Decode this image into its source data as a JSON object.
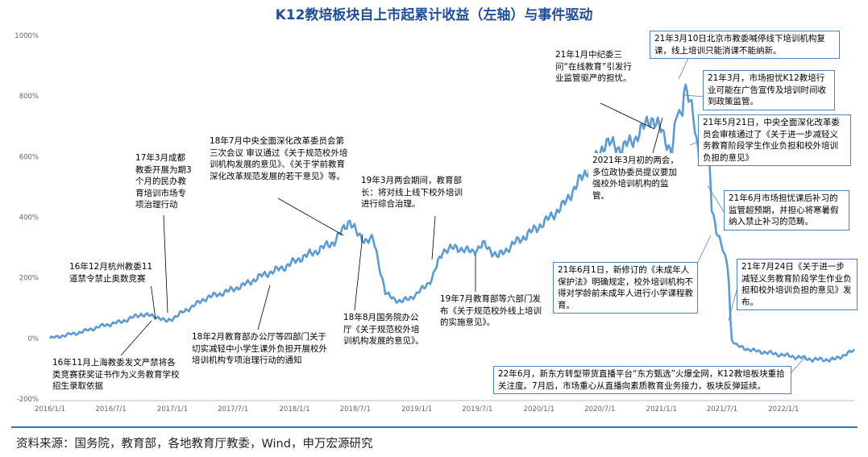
{
  "title": "K12教培板块自上市起累计收益（左轴）与事件驱动",
  "source": "资料来源：国务院，教育部，各地教育厅教委，Wind，申万宏源研究",
  "colors": {
    "line": "#5b9bd5",
    "title": "#1f4e9a",
    "rule": "#2f75b5",
    "box_dark": "#000000",
    "box_blue": "#4f81bd"
  },
  "chart_data": {
    "type": "line",
    "y_unit": "%",
    "ylim": [
      -200,
      1000
    ],
    "y_ticks": [
      -200,
      0,
      200,
      400,
      600,
      800,
      1000
    ],
    "y_tick_labels": [
      "-200%",
      "0%",
      "200%",
      "400%",
      "600%",
      "800%",
      "1000%"
    ],
    "x_range": [
      "2016-01-01",
      "2022-07-31"
    ],
    "x_tick_labels": [
      "2016/1/1",
      "2016/7/1",
      "2017/1/1",
      "2017/7/1",
      "2018/1/1",
      "2018/7/1",
      "2019/1/1",
      "2019/7/1",
      "2020/1/1",
      "2020/7/1",
      "2021/1/1",
      "2021/7/1",
      "2022/1/1"
    ],
    "grid": false,
    "series": [
      {
        "x": [
          "2016-01-01",
          "2016-02-15",
          "2016-04-01",
          "2016-06-01",
          "2016-08-01",
          "2016-10-01",
          "2016-11-20",
          "2016-12-15",
          "2017-01-15",
          "2017-03-01",
          "2017-04-15",
          "2017-06-01",
          "2017-08-01",
          "2017-10-01",
          "2017-12-01",
          "2018-01-20",
          "2018-03-01",
          "2018-05-01",
          "2018-06-15",
          "2018-07-10",
          "2018-08-01",
          "2018-08-25",
          "2018-10-01",
          "2018-11-15",
          "2019-01-01",
          "2019-02-15",
          "2019-03-20",
          "2019-05-01",
          "2019-06-15",
          "2019-07-20",
          "2019-09-01",
          "2019-10-15",
          "2019-12-01",
          "2020-01-20",
          "2020-03-15",
          "2020-05-01",
          "2020-06-15",
          "2020-07-20",
          "2020-09-01",
          "2020-10-15",
          "2020-12-01",
          "2021-01-05",
          "2021-02-01",
          "2021-02-20",
          "2021-03-03",
          "2021-03-10",
          "2021-04-01",
          "2021-04-25",
          "2021-05-21",
          "2021-06-01",
          "2021-06-15",
          "2021-07-01",
          "2021-07-20",
          "2021-07-24",
          "2021-07-28",
          "2021-08-15",
          "2021-10-01",
          "2021-12-01",
          "2022-02-01",
          "2022-04-01",
          "2022-06-01",
          "2022-07-31"
        ],
        "values": [
          0,
          10,
          20,
          40,
          55,
          80,
          70,
          55,
          75,
          105,
          135,
          150,
          175,
          210,
          235,
          265,
          285,
          320,
          390,
          340,
          325,
          325,
          145,
          120,
          145,
          195,
          290,
          300,
          285,
          310,
          270,
          310,
          345,
          385,
          440,
          520,
          585,
          650,
          625,
          660,
          730,
          680,
          610,
          760,
          725,
          845,
          760,
          600,
          650,
          430,
          360,
          300,
          230,
          150,
          0,
          -25,
          -40,
          -50,
          -60,
          -70,
          -70,
          -40
        ]
      }
    ]
  },
  "annotations": [
    {
      "text": "16年11月上海教委发文严禁将各类竞赛获奖证书作为义务教育学校招生录取依据",
      "style": "dark"
    },
    {
      "text": "16年12月杭州教委11道禁令禁止奥数竞赛",
      "style": "dark"
    },
    {
      "text": "17年3月成都教委开展为期3个月的民办教育培训市场专项治理行动",
      "style": "dark"
    },
    {
      "text": "18年2月教育部办公厅等四部门关于切实减轻中小学生课外负担开展校外培训机构专项治理行动的通知",
      "style": "dark"
    },
    {
      "text": "18年7月中央全面深化改革委员会第三次会议 审议通过《关于规范校外培训机构发展的意见》、《关于学前教育深化改革规范发展的若干意见》等。",
      "style": "dark"
    },
    {
      "text": "18年8月国务院办公厅《关于规范校外培训机构发展的意见》。",
      "style": "dark"
    },
    {
      "text": "19年3月两会期间，教育部长：将对线上线下校外培训进行综合治理。",
      "style": "dark"
    },
    {
      "text": "19年7月教育部等六部门发布《关于规范校外线上培训的实施意见》。",
      "style": "dark"
    },
    {
      "text": "21年1月中纪委三问“在线教育”引发行业监管驱严的担忧。",
      "style": "dark"
    },
    {
      "text": "2021年3月初的两会，多位政协委员提议要加强校外培训机构的监管。",
      "style": "dark"
    },
    {
      "text": "21年3月10日北京市教委喊停线下培训机构复课，线上培训只能消课不能纳新。",
      "style": "blue"
    },
    {
      "text": "21年3月，市场担忧K12教培行业可能在广告宣传及培训时间收到政策监管。",
      "style": "blue"
    },
    {
      "text": "21年5月21日，中央全面深化改革委员会审核通过了《关于进一步减轻义务教育阶段学生作业负担和校外培训负担的意见》",
      "style": "blue"
    },
    {
      "text": "21年6月市场担忧课后补习的监管超预期，并担心将寒暑假纳入禁止补习的范畴。",
      "style": "blue"
    },
    {
      "text": "21年6月1日，新修订的《未成年人保护法》明确规定，校外培训机构不得对学龄前未成年人进行小学课程教育。",
      "style": "blue"
    },
    {
      "text": "21年7月24日《关于进一步减轻义务教育阶段学生作业负担和校外培训负担的意见》发布。",
      "style": "blue"
    },
    {
      "text": "22年6月，新东方转型带货直播平台“东方甄选”火爆全网，K12教培板块重拾关注度。7月后，市场重心从直播向素质教育业务接力，板块反弹延续。",
      "style": "blue"
    }
  ]
}
